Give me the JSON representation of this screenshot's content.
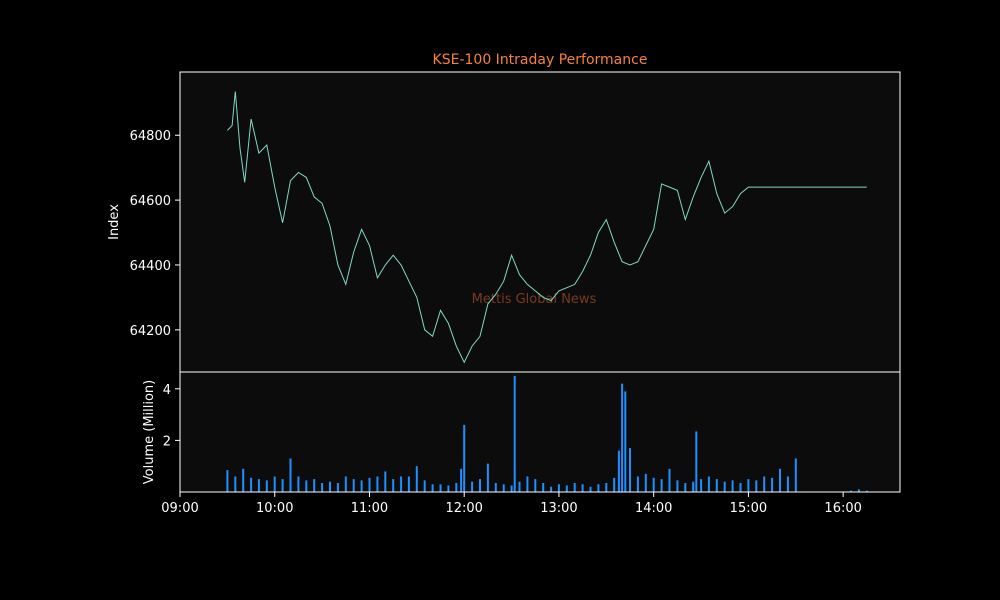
{
  "chart_data": [
    {
      "type": "line",
      "title": "KSE-100 Intraday Performance",
      "ylabel": "Index",
      "xlim": [
        "09:00",
        "16:36"
      ],
      "ylim": [
        64070,
        64995
      ],
      "yticks": [
        64200,
        64400,
        64600,
        64800
      ],
      "x": [
        "09:30",
        "09:33",
        "09:35",
        "09:38",
        "09:41",
        "09:45",
        "09:50",
        "09:55",
        "10:00",
        "10:05",
        "10:10",
        "10:15",
        "10:20",
        "10:25",
        "10:30",
        "10:35",
        "10:40",
        "10:45",
        "10:50",
        "10:55",
        "11:00",
        "11:05",
        "11:10",
        "11:15",
        "11:20",
        "11:25",
        "11:30",
        "11:35",
        "11:40",
        "11:45",
        "11:50",
        "11:55",
        "12:00",
        "12:05",
        "12:10",
        "12:15",
        "12:20",
        "12:25",
        "12:30",
        "12:35",
        "12:40",
        "12:45",
        "12:50",
        "12:55",
        "13:00",
        "13:05",
        "13:10",
        "13:15",
        "13:20",
        "13:25",
        "13:30",
        "13:35",
        "13:40",
        "13:45",
        "13:50",
        "13:55",
        "14:00",
        "14:05",
        "14:10",
        "14:15",
        "14:20",
        "14:25",
        "14:30",
        "14:35",
        "14:40",
        "14:45",
        "14:50",
        "14:55",
        "15:00",
        "15:05",
        "15:10",
        "15:15",
        "15:20",
        "15:25",
        "15:30",
        "15:35",
        "15:40",
        "16:00",
        "16:15"
      ],
      "series": [
        {
          "color": "#7fd8c4",
          "values": [
            64815,
            64830,
            64935,
            64760,
            64655,
            64850,
            64745,
            64770,
            64640,
            64530,
            64660,
            64685,
            64670,
            64610,
            64590,
            64520,
            64400,
            64340,
            64440,
            64510,
            64460,
            64360,
            64400,
            64430,
            64400,
            64350,
            64300,
            64200,
            64180,
            64260,
            64220,
            64150,
            64100,
            64150,
            64180,
            64280,
            64310,
            64350,
            64430,
            64370,
            64340,
            64320,
            64300,
            64290,
            64320,
            64330,
            64340,
            64380,
            64430,
            64500,
            64540,
            64470,
            64410,
            64400,
            64410,
            64460,
            64510,
            64650,
            64640,
            64630,
            64540,
            64610,
            64670,
            64720,
            64620,
            64560,
            64580,
            64620,
            64640,
            64640,
            64640,
            64640,
            64640,
            64640,
            64640,
            64640,
            64640,
            64640,
            64640
          ]
        }
      ]
    },
    {
      "type": "bar",
      "ylabel": "Volume (Million)",
      "ylim": [
        0,
        4.65
      ],
      "yticks": [
        2,
        4
      ],
      "xticks": [
        "09:00",
        "10:00",
        "11:00",
        "12:00",
        "13:00",
        "14:00",
        "15:00",
        "16:00"
      ],
      "color": "#1e90ff",
      "x": [
        "09:30",
        "09:35",
        "09:40",
        "09:45",
        "09:50",
        "09:55",
        "10:00",
        "10:05",
        "10:10",
        "10:15",
        "10:20",
        "10:25",
        "10:30",
        "10:35",
        "10:40",
        "10:45",
        "10:50",
        "10:55",
        "11:00",
        "11:05",
        "11:10",
        "11:15",
        "11:20",
        "11:25",
        "11:30",
        "11:35",
        "11:40",
        "11:45",
        "11:50",
        "11:55",
        "11:58",
        "12:00",
        "12:05",
        "12:10",
        "12:15",
        "12:20",
        "12:25",
        "12:30",
        "12:32",
        "12:35",
        "12:40",
        "12:45",
        "12:50",
        "12:55",
        "13:00",
        "13:05",
        "13:10",
        "13:15",
        "13:20",
        "13:25",
        "13:30",
        "13:35",
        "13:38",
        "13:40",
        "13:42",
        "13:45",
        "13:50",
        "13:55",
        "14:00",
        "14:05",
        "14:10",
        "14:15",
        "14:20",
        "14:25",
        "14:27",
        "14:30",
        "14:35",
        "14:40",
        "14:45",
        "14:50",
        "14:55",
        "15:00",
        "15:05",
        "15:10",
        "15:15",
        "15:20",
        "15:25",
        "15:30",
        "16:05",
        "16:10",
        "16:15"
      ],
      "values": [
        0.85,
        0.6,
        0.9,
        0.55,
        0.5,
        0.45,
        0.6,
        0.5,
        1.3,
        0.6,
        0.45,
        0.5,
        0.35,
        0.4,
        0.35,
        0.6,
        0.5,
        0.45,
        0.55,
        0.6,
        0.8,
        0.5,
        0.6,
        0.6,
        1.0,
        0.45,
        0.3,
        0.3,
        0.25,
        0.35,
        0.9,
        2.6,
        0.4,
        0.5,
        1.1,
        0.35,
        0.3,
        0.25,
        4.5,
        0.4,
        0.6,
        0.5,
        0.35,
        0.2,
        0.3,
        0.25,
        0.35,
        0.3,
        0.2,
        0.3,
        0.35,
        0.55,
        1.6,
        4.2,
        3.9,
        1.7,
        0.6,
        0.7,
        0.55,
        0.5,
        0.9,
        0.45,
        0.35,
        0.4,
        2.35,
        0.5,
        0.6,
        0.5,
        0.4,
        0.45,
        0.35,
        0.5,
        0.45,
        0.6,
        0.55,
        0.9,
        0.6,
        1.3,
        0.05,
        0.1,
        0.05
      ]
    }
  ],
  "watermark": "Mettis Global News",
  "colors": {
    "title": "#f5823d",
    "watermark": "#7a3a1e",
    "axes_bg": "#0c0c0c",
    "figure_bg": "#000000"
  }
}
